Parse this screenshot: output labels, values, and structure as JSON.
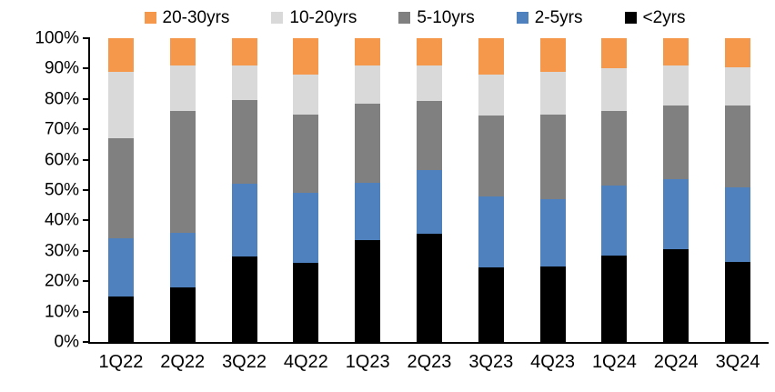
{
  "chart_data": {
    "type": "bar",
    "stacked": true,
    "percent_stacked": true,
    "title": "",
    "xlabel": "",
    "ylabel": "",
    "ylim": [
      0,
      100
    ],
    "grid": false,
    "legend_position": "top",
    "legend_order": [
      "20-30yrs",
      "10-20yrs",
      "5-10yrs",
      "2-5yrs",
      "<2yrs"
    ],
    "yticks": [
      "0%",
      "10%",
      "20%",
      "30%",
      "40%",
      "50%",
      "60%",
      "70%",
      "80%",
      "90%",
      "100%"
    ],
    "categories": [
      "1Q22",
      "2Q22",
      "3Q22",
      "4Q22",
      "1Q23",
      "2Q23",
      "3Q23",
      "4Q23",
      "1Q24",
      "2Q24",
      "3Q24"
    ],
    "series": [
      {
        "name": "<2yrs",
        "color": "#000000",
        "values": [
          15,
          18,
          28,
          26,
          33.5,
          35.5,
          24.5,
          25,
          28.5,
          30.5,
          26.5
        ]
      },
      {
        "name": "2-5yrs",
        "color": "#4E81BD",
        "values": [
          19,
          18,
          24,
          23,
          19,
          21,
          23.5,
          22,
          23,
          23,
          24.5
        ]
      },
      {
        "name": "5-10yrs",
        "color": "#808080",
        "values": [
          33,
          40,
          27.5,
          26,
          26,
          23,
          26.5,
          28,
          24.5,
          24.5,
          27
        ]
      },
      {
        "name": "10-20yrs",
        "color": "#D9D9D9",
        "values": [
          22,
          15,
          11.5,
          13,
          12.5,
          11.5,
          13.5,
          14,
          14,
          13,
          12.5
        ]
      },
      {
        "name": "20-30yrs",
        "color": "#F5984C",
        "values": [
          11,
          9,
          9,
          12,
          9,
          9,
          12,
          11,
          10,
          9,
          9.5
        ]
      }
    ],
    "colors": {
      "orange": "#F5984C",
      "light_gray": "#D9D9D9",
      "dark_gray": "#808080",
      "blue": "#4E81BD",
      "black": "#000000",
      "axis": "#000000"
    }
  }
}
